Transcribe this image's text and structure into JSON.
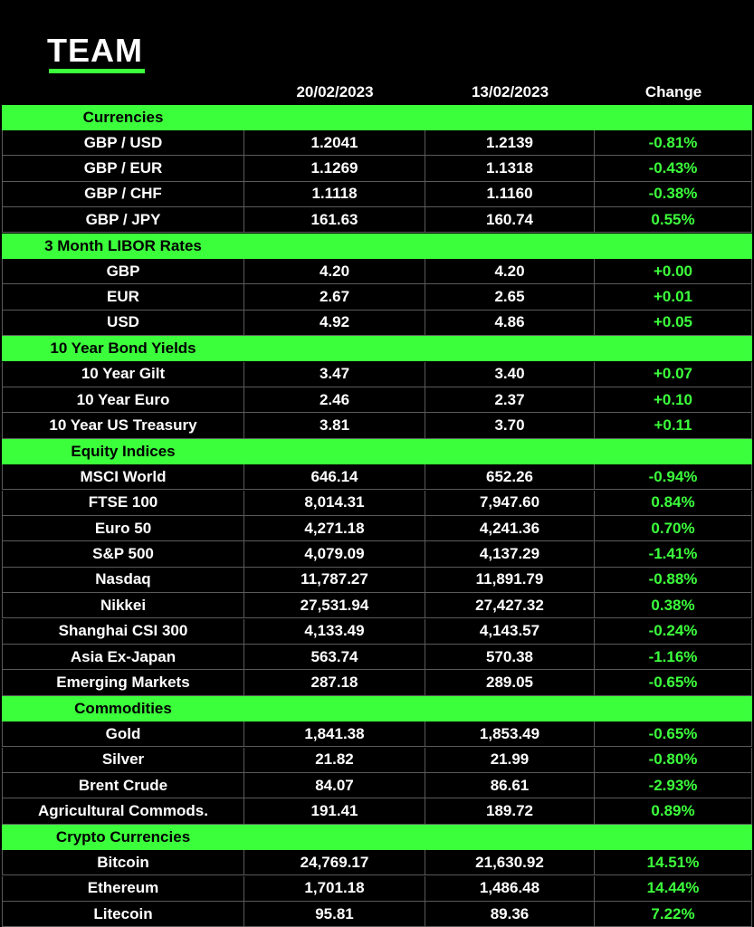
{
  "header": {
    "logo": "TEAM"
  },
  "table": {
    "columns": [
      "20/02/2023",
      "13/02/2023",
      "Change"
    ],
    "sections": [
      {
        "title": "Currencies",
        "rows": [
          [
            "GBP / USD",
            "1.2041",
            "1.2139",
            "-0.81%"
          ],
          [
            "GBP / EUR",
            "1.1269",
            "1.1318",
            "-0.43%"
          ],
          [
            "GBP / CHF",
            "1.1118",
            "1.1160",
            "-0.38%"
          ],
          [
            "GBP / JPY",
            "161.63",
            "160.74",
            "0.55%"
          ]
        ]
      },
      {
        "title": "3 Month LIBOR Rates",
        "rows": [
          [
            "GBP",
            "4.20",
            "4.20",
            "+0.00"
          ],
          [
            "EUR",
            "2.67",
            "2.65",
            "+0.01"
          ],
          [
            "USD",
            "4.92",
            "4.86",
            "+0.05"
          ]
        ]
      },
      {
        "title": "10 Year Bond Yields",
        "rows": [
          [
            "10 Year Gilt",
            "3.47",
            "3.40",
            "+0.07"
          ],
          [
            "10 Year Euro",
            "2.46",
            "2.37",
            "+0.10"
          ],
          [
            "10 Year US Treasury",
            "3.81",
            "3.70",
            "+0.11"
          ]
        ]
      },
      {
        "title": "Equity Indices",
        "rows": [
          [
            "MSCI World",
            "646.14",
            "652.26",
            "-0.94%"
          ],
          [
            "FTSE 100",
            "8,014.31",
            "7,947.60",
            "0.84%"
          ],
          [
            "Euro 50",
            "4,271.18",
            "4,241.36",
            "0.70%"
          ],
          [
            "S&P 500",
            "4,079.09",
            "4,137.29",
            "-1.41%"
          ],
          [
            "Nasdaq",
            "11,787.27",
            "11,891.79",
            "-0.88%"
          ],
          [
            "Nikkei",
            "27,531.94",
            "27,427.32",
            "0.38%"
          ],
          [
            "Shanghai CSI 300",
            "4,133.49",
            "4,143.57",
            "-0.24%"
          ],
          [
            "Asia Ex-Japan",
            "563.74",
            "570.38",
            "-1.16%"
          ],
          [
            "Emerging Markets",
            "287.18",
            "289.05",
            "-0.65%"
          ]
        ]
      },
      {
        "title": "Commodities",
        "rows": [
          [
            "Gold",
            "1,841.38",
            "1,853.49",
            "-0.65%"
          ],
          [
            "Silver",
            "21.82",
            "21.99",
            "-0.80%"
          ],
          [
            "Brent Crude",
            "84.07",
            "86.61",
            "-2.93%"
          ],
          [
            "Agricultural Commods.",
            "191.41",
            "189.72",
            "0.89%"
          ]
        ]
      },
      {
        "title": "Crypto Currencies",
        "rows": [
          [
            "Bitcoin",
            "24,769.17",
            "21,630.92",
            "14.51%"
          ],
          [
            "Ethereum",
            "1,701.18",
            "1,486.48",
            "14.44%"
          ],
          [
            "Litecoin",
            "95.81",
            "89.36",
            "7.22%"
          ]
        ]
      }
    ]
  }
}
